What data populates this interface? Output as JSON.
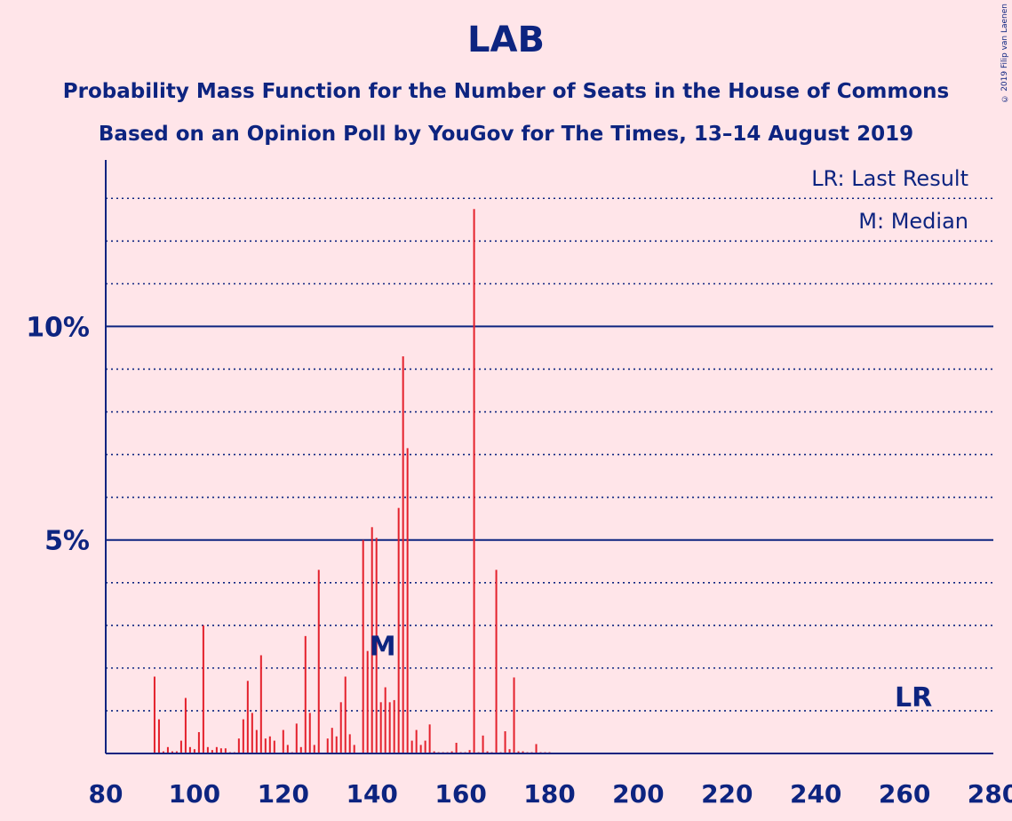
{
  "copyright": "© 2019 Filip van Laenen",
  "chart_data": {
    "type": "bar",
    "title": "LAB",
    "subtitle": [
      "Probability Mass Function for the Number of Seats in the House of Commons",
      "Based on an Opinion Poll by YouGov for The Times, 13–14 August 2019"
    ],
    "xlabel": "",
    "ylabel": "",
    "xlim": [
      80,
      280
    ],
    "ylim": [
      0,
      13.9
    ],
    "x_ticks": [
      "80",
      "100",
      "120",
      "140",
      "160",
      "180",
      "200",
      "220",
      "240",
      "260",
      "280"
    ],
    "y_ticks": [
      {
        "value": 5,
        "label": "5%"
      },
      {
        "value": 10,
        "label": "10%"
      }
    ],
    "grid": true,
    "legend": [
      "LR: Last Result",
      "M: Median"
    ],
    "legend_position": "top-right",
    "bar_color": "#E4212C",
    "axis_color": "#0D2480",
    "background": "#FFE5E9",
    "median": {
      "seat": 142,
      "label": "M"
    },
    "last_result": {
      "seat": 262,
      "label": "LR"
    },
    "x": [
      91,
      92,
      93,
      94,
      95,
      96,
      97,
      98,
      99,
      100,
      101,
      102,
      103,
      104,
      105,
      106,
      107,
      108,
      109,
      110,
      111,
      112,
      113,
      114,
      115,
      116,
      117,
      118,
      119,
      120,
      121,
      122,
      123,
      124,
      125,
      126,
      127,
      128,
      129,
      130,
      131,
      132,
      133,
      134,
      135,
      136,
      137,
      138,
      139,
      140,
      141,
      142,
      143,
      144,
      145,
      146,
      147,
      148,
      149,
      150,
      151,
      152,
      153,
      154,
      155,
      156,
      157,
      158,
      159,
      160,
      161,
      162,
      163,
      164,
      165,
      166,
      167,
      168,
      169,
      170,
      171,
      172,
      173,
      174,
      175,
      176,
      177,
      178,
      179,
      180,
      181,
      182,
      183,
      184,
      185
    ],
    "values": [
      1.8,
      0.8,
      0.05,
      0.15,
      0.05,
      0.05,
      0.3,
      1.3,
      0.15,
      0.1,
      0.5,
      3.0,
      0.15,
      0.08,
      0.15,
      0.12,
      0.12,
      0.03,
      0.03,
      0.35,
      0.8,
      1.7,
      0.95,
      0.55,
      2.3,
      0.35,
      0.4,
      0.3,
      0.02,
      0.55,
      0.2,
      0.03,
      0.7,
      0.15,
      2.75,
      0.95,
      0.2,
      4.3,
      0.02,
      0.35,
      0.6,
      0.4,
      1.2,
      1.8,
      0.45,
      0.2,
      0.02,
      5.0,
      2.4,
      5.3,
      5.05,
      1.2,
      1.55,
      1.2,
      1.25,
      5.75,
      9.3,
      7.15,
      0.3,
      0.55,
      0.2,
      0.3,
      0.68,
      0.05,
      0.03,
      0.03,
      0.03,
      0.05,
      0.25,
      0.03,
      0.03,
      0.08,
      12.75,
      0.03,
      0.42,
      0.05,
      0.03,
      4.3,
      0.03,
      0.52,
      0.1,
      1.78,
      0.05,
      0.05,
      0.03,
      0.03,
      0.22,
      0.03,
      0.03,
      0.03,
      0.02,
      0.02,
      0.02,
      0.01,
      0.01
    ]
  }
}
